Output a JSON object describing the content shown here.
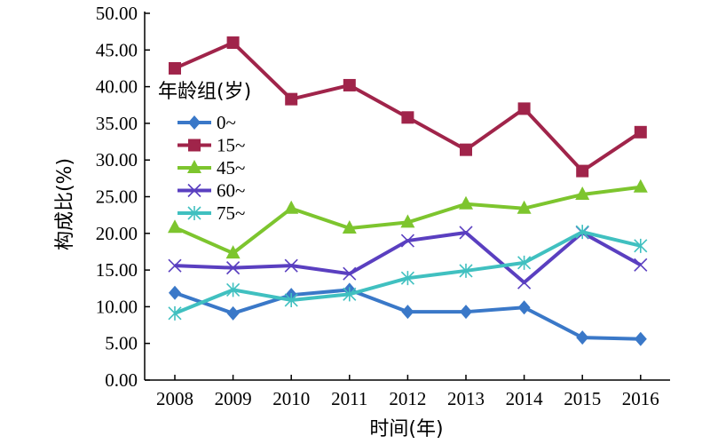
{
  "chart_data": {
    "type": "line",
    "title": "",
    "xlabel": "时间(年)",
    "ylabel": "构成比(%)",
    "ylim": [
      0,
      50
    ],
    "yticks": [
      "0.00",
      "5.00",
      "10.00",
      "15.00",
      "20.00",
      "25.00",
      "30.00",
      "35.00",
      "40.00",
      "45.00",
      "50.00"
    ],
    "x": [
      "2008",
      "2009",
      "2010",
      "2011",
      "2012",
      "2013",
      "2014",
      "2015",
      "2016"
    ],
    "grid": false,
    "legend": {
      "title": "年龄组(岁)",
      "placement": "top-left"
    },
    "series": [
      {
        "name": "0~",
        "color": "#3a78c8",
        "marker": "diamond",
        "values": [
          11.9,
          9.1,
          11.6,
          12.3,
          9.3,
          9.3,
          9.9,
          5.8,
          5.6
        ]
      },
      {
        "name": "15~",
        "color": "#a0244a",
        "marker": "square",
        "values": [
          42.5,
          46.0,
          38.3,
          40.2,
          35.8,
          31.4,
          37.0,
          28.5,
          33.8
        ]
      },
      {
        "name": "45~",
        "color": "#7dc52e",
        "marker": "triangle",
        "values": [
          20.8,
          17.3,
          23.4,
          20.7,
          21.5,
          24.0,
          23.4,
          25.3,
          26.3
        ]
      },
      {
        "name": "60~",
        "color": "#5a3fc0",
        "marker": "x",
        "values": [
          15.6,
          15.3,
          15.6,
          14.5,
          19.0,
          20.1,
          13.3,
          20.1,
          15.7
        ]
      },
      {
        "name": "75~",
        "color": "#40c0c0",
        "marker": "star",
        "values": [
          9.1,
          12.3,
          10.9,
          11.7,
          13.9,
          14.9,
          16.0,
          20.2,
          18.3
        ]
      }
    ]
  }
}
